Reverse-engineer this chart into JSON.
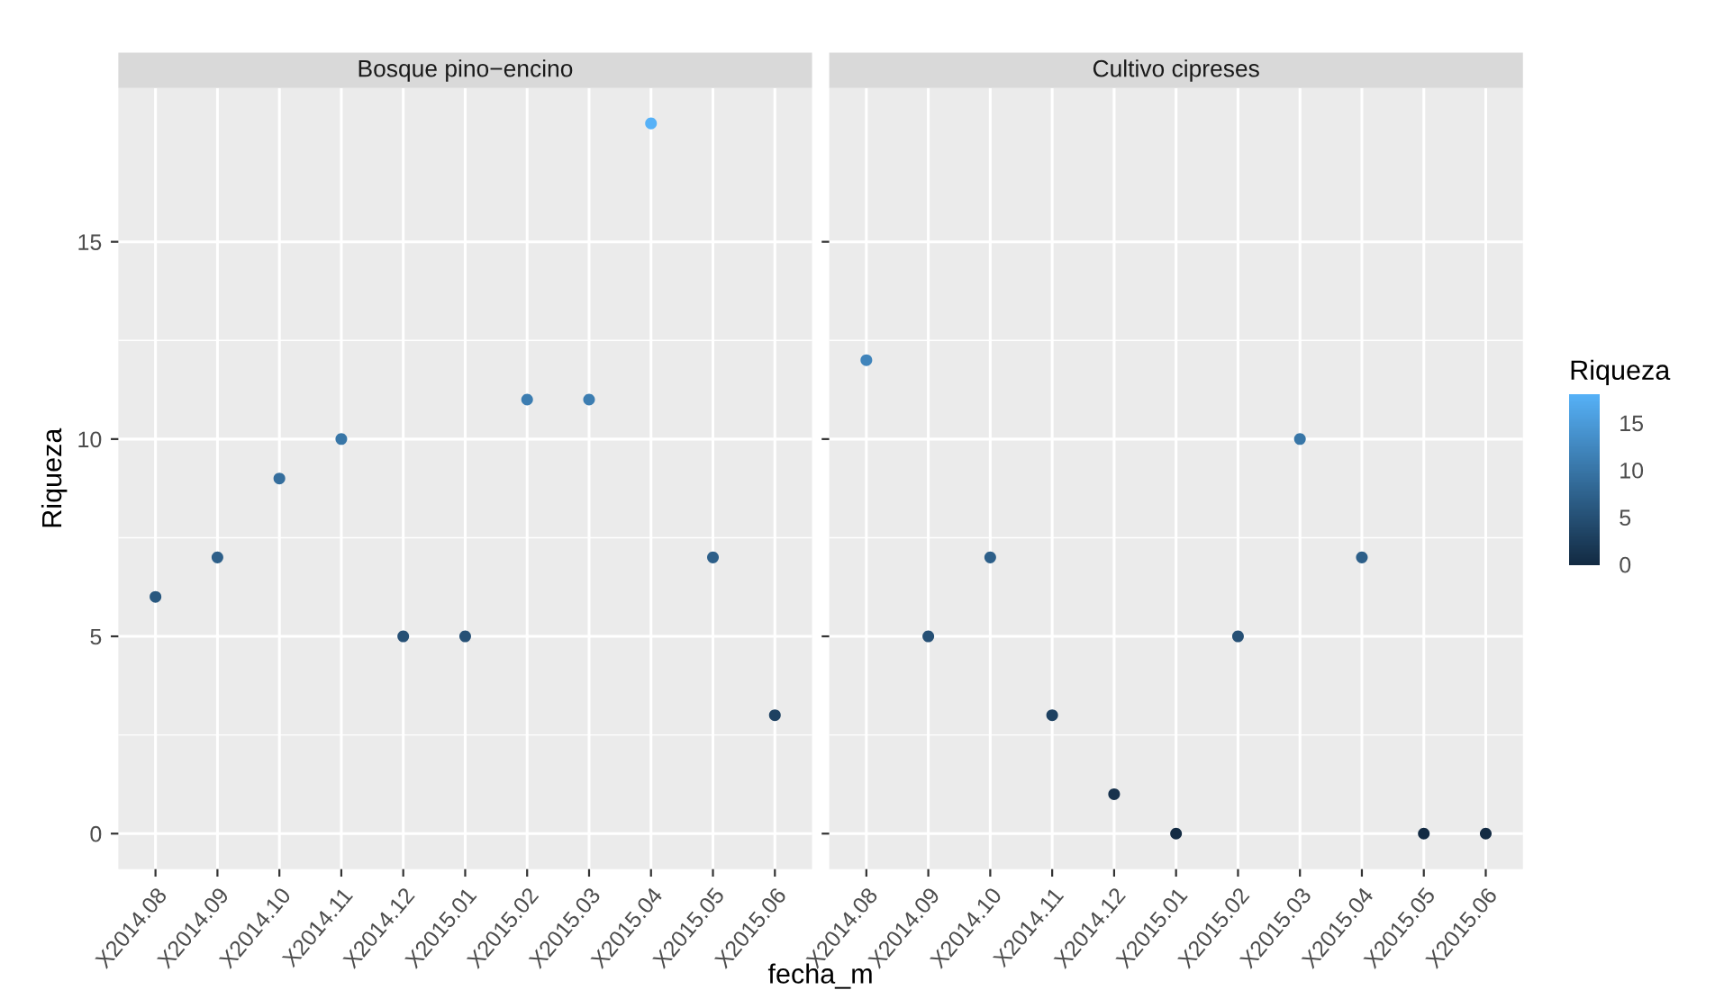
{
  "chart_data": [
    {
      "type": "scatter",
      "title": "Bosque pino−encino",
      "xlabel": "fecha_m",
      "ylabel": "Riqueza",
      "categories": [
        "X2014.08",
        "X2014.09",
        "X2014.10",
        "X2014.11",
        "X2014.12",
        "X2015.01",
        "X2015.02",
        "X2015.03",
        "X2015.04",
        "X2015.05",
        "X2015.06"
      ],
      "values": [
        6,
        7,
        9,
        10,
        5,
        5,
        11,
        11,
        18,
        7,
        3
      ],
      "ylim": [
        -0.9,
        18.9
      ],
      "yticks": [
        0,
        5,
        10,
        15
      ],
      "grid": true,
      "marker": "circle"
    },
    {
      "type": "scatter",
      "title": "Cultivo cipreses",
      "categories": [
        "X2014.08",
        "X2014.09",
        "X2014.10",
        "X2014.11",
        "X2014.12",
        "X2015.01",
        "X2015.02",
        "X2015.03",
        "X2015.04",
        "X2015.05",
        "X2015.06"
      ],
      "values": [
        12,
        5,
        7,
        3,
        1,
        0,
        5,
        10,
        7,
        0,
        0
      ],
      "ylim": [
        -0.9,
        18.9
      ],
      "yticks": [
        0,
        5,
        10,
        15
      ],
      "tick_labels": "x",
      "grid": true,
      "marker": "circle",
      "clabel": "Riqueza",
      "clim": [
        0,
        18
      ],
      "cticks": [
        0,
        5,
        10,
        15
      ]
    }
  ]
}
